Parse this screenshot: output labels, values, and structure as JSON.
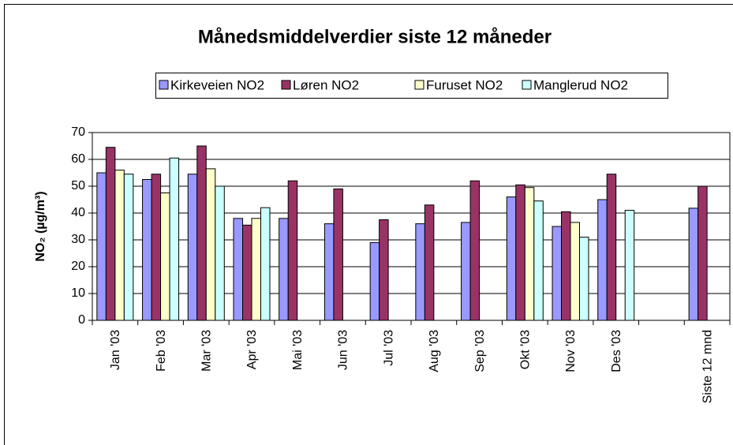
{
  "chart_data": {
    "type": "bar",
    "title": "Månedsmiddelverdier siste 12 måneder",
    "y_label": "NO₂ (µg/m³)",
    "categories": [
      "Jan '03",
      "Feb '03",
      "Mar '03",
      "Apr '03",
      "Mai '03",
      "Jun '03",
      "Jul '03",
      "Aug '03",
      "Sep '03",
      "Okt '03",
      "Nov '03",
      "Des '03",
      null,
      "Siste 12 mnd"
    ],
    "series": [
      {
        "name": "Kirkeveien NO2",
        "color": "#9999ff",
        "values": [
          55,
          52.5,
          54.5,
          38,
          38,
          36,
          29,
          36,
          36.5,
          46,
          35,
          45,
          null,
          41.8
        ]
      },
      {
        "name": "Løren NO2",
        "color": "#993366",
        "values": [
          64.5,
          54.5,
          65,
          35.5,
          52,
          49,
          37.5,
          43,
          52,
          50.5,
          40.5,
          54.5,
          null,
          50
        ]
      },
      {
        "name": "Furuset NO2",
        "color": "#ffffcc",
        "values": [
          56,
          47.5,
          56.5,
          38,
          null,
          null,
          null,
          null,
          null,
          49.5,
          36.5,
          null,
          null,
          null
        ]
      },
      {
        "name": "Manglerud NO2",
        "color": "#ccffff",
        "values": [
          54.5,
          60.5,
          50,
          42,
          null,
          null,
          null,
          null,
          null,
          44.5,
          31,
          41,
          null,
          null
        ]
      }
    ],
    "ylim": [
      0,
      70
    ],
    "yticks": [
      0,
      10,
      20,
      30,
      40,
      50,
      60,
      70
    ],
    "grid": true
  }
}
